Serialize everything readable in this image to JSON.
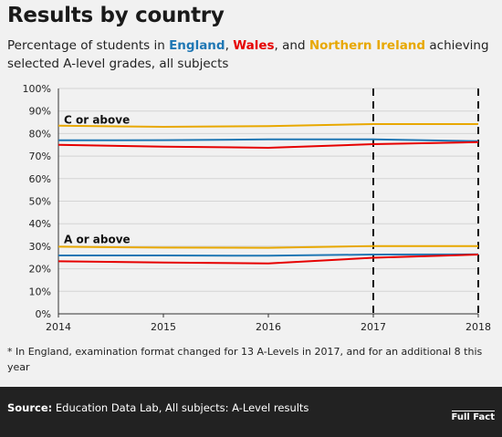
{
  "title": "Results by country",
  "subtitle": {
    "prefix": "Percentage of students in ",
    "england": "England",
    "sep1": ", ",
    "wales": "Wales",
    "sep2": ", and ",
    "ni": "Northern Ireland",
    "suffix": " achieving selected A-level grades, all subjects"
  },
  "footnote": "* In England, examination format changed for 13 A-Levels in 2017, and for an additional 8 this year",
  "footer": {
    "source_label": "Source:",
    "source_text": " Education Data Lab, All subjects: A-Level results",
    "logo": "Full Fact"
  },
  "colors": {
    "england": "#1f77b4",
    "wales": "#e60000",
    "ni": "#e8a800"
  },
  "chart_data": {
    "type": "line",
    "x": [
      2014,
      2015,
      2016,
      2017,
      2018
    ],
    "x_ticks": [
      "2014",
      "2015",
      "2016",
      "2017",
      "2018"
    ],
    "ylim": [
      0,
      100
    ],
    "y_ticks": [
      "0%",
      "10%",
      "20%",
      "30%",
      "40%",
      "50%",
      "60%",
      "70%",
      "80%",
      "90%",
      "100%"
    ],
    "grid": true,
    "vlines": [
      2017,
      2018
    ],
    "annotations": [
      {
        "text": "C or above",
        "x": 2014,
        "y": 86
      },
      {
        "text": "A or above",
        "x": 2014,
        "y": 33
      }
    ],
    "series": [
      {
        "key": "ni",
        "group": "C or above",
        "values": [
          83.5,
          83.0,
          83.3,
          84.2,
          84.2
        ]
      },
      {
        "key": "england",
        "group": "C or above",
        "values": [
          77.0,
          77.1,
          77.4,
          77.4,
          76.6
        ]
      },
      {
        "key": "wales",
        "group": "C or above",
        "values": [
          75.0,
          74.2,
          73.7,
          75.3,
          76.2
        ]
      },
      {
        "key": "ni",
        "group": "A or above",
        "values": [
          29.8,
          29.4,
          29.3,
          30.1,
          30.1
        ]
      },
      {
        "key": "england",
        "group": "A or above",
        "values": [
          25.9,
          25.9,
          25.8,
          26.3,
          26.4
        ]
      },
      {
        "key": "wales",
        "group": "A or above",
        "values": [
          23.3,
          22.8,
          22.4,
          24.9,
          26.3
        ]
      }
    ]
  }
}
